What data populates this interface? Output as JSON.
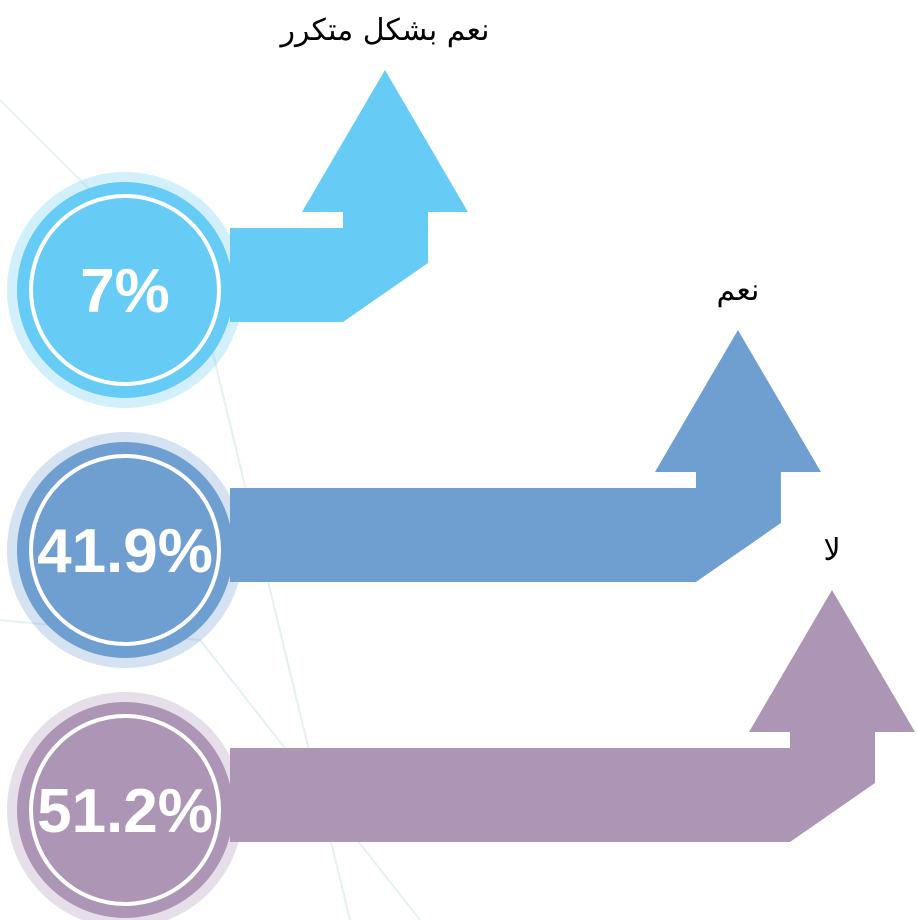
{
  "chart_data": {
    "type": "arrow",
    "categories": [
      "نعم بشكل متكرر",
      "نعم",
      "لا"
    ],
    "values": [
      7,
      41.9,
      51.2
    ],
    "value_labels": [
      "7%",
      "41.9%",
      "51.2%"
    ],
    "colors": [
      "#66ccf5",
      "#6f9fd0",
      "#ad95b5"
    ]
  }
}
